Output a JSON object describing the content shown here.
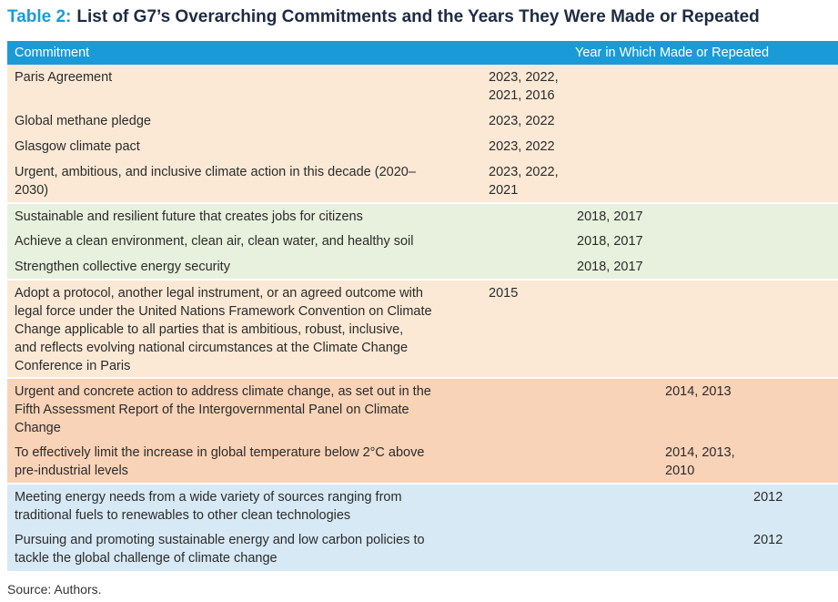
{
  "title": {
    "label": "Table 2:",
    "text": "List of G7’s Overarching Commitments and the Years They Were Made or Repeated"
  },
  "header": {
    "commitment": "Commitment",
    "years": "Year in Which Made or Repeated"
  },
  "colors": {
    "header_bg": "#1a9bd7",
    "title_label": "#1a9bd7",
    "group_2023": "#fbe9d6",
    "group_2018": "#e8f1dd",
    "group_2015": "#fbe9d6",
    "group_2014": "#f8d3b8",
    "group_2012": "#d7e9f5"
  },
  "rows": [
    {
      "commitment": "Paris Agreement",
      "years": "2023, 2022,\n2021, 2016"
    },
    {
      "commitment": "Global methane pledge",
      "years": "2023, 2022"
    },
    {
      "commitment": "Glasgow climate pact",
      "years": "2023, 2022"
    },
    {
      "commitment": "Urgent, ambitious, and inclusive climate action in this decade (2020–\n2030)",
      "years": "2023, 2022,\n2021"
    },
    {
      "commitment": "Sustainable and resilient future that creates jobs for citizens",
      "years": "2018, 2017"
    },
    {
      "commitment": "Achieve a clean environment, clean air, clean water, and healthy soil",
      "years": "2018, 2017"
    },
    {
      "commitment": "Strengthen collective energy security",
      "years": "2018, 2017"
    },
    {
      "commitment": "Adopt a protocol, another legal instrument, or an agreed outcome with\nlegal force under the United Nations Framework Convention on Climate\nChange applicable to all parties that is ambitious, robust, inclusive,\nand reflects evolving national circumstances at the Climate Change\nConference in Paris",
      "years": "2015"
    },
    {
      "commitment": "Urgent and concrete action to address climate change, as set out in the\nFifth Assessment Report of the Intergovernmental Panel on Climate\nChange",
      "years": "2014, 2013"
    },
    {
      "commitment": "To effectively limit the increase in global temperature below 2°C above\npre-industrial levels",
      "years": "2014, 2013,\n2010"
    },
    {
      "commitment": "Meeting energy needs from a wide variety of sources ranging from\ntraditional fuels to renewables to other clean technologies",
      "years": "2012"
    },
    {
      "commitment": "Pursuing and promoting sustainable energy and low carbon policies to\ntackle the global challenge of climate change",
      "years": "2012"
    }
  ],
  "source": "Source: Authors."
}
